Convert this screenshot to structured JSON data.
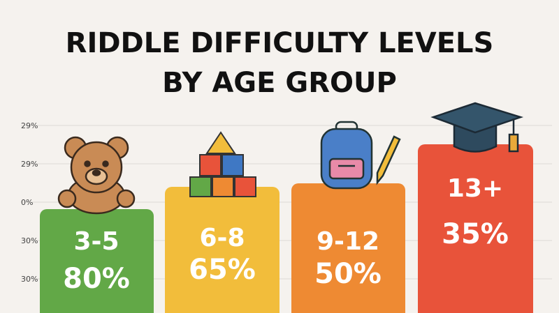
{
  "title": [
    "RIDDLE DIFFICULTY LEVELS",
    "BY AGE GROUP"
  ],
  "axis_labels": [
    "29%",
    "29%",
    "0%",
    "30%",
    "30%"
  ],
  "groups": [
    {
      "label": "3-5",
      "value": "80%"
    },
    {
      "label": "6-8",
      "value": "65%"
    },
    {
      "label": "9-12",
      "value": "50%"
    },
    {
      "label": "13+",
      "value": "35%"
    }
  ]
}
